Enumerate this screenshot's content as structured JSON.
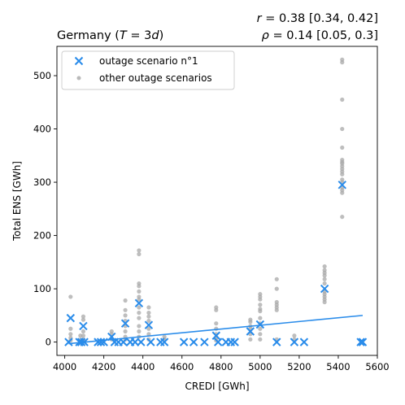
{
  "chart_data": {
    "type": "scatter",
    "title": "Germany (T = 3d)",
    "title_parts": {
      "country": "Germany (",
      "T": "T",
      "eq": " = 3",
      "d": "d",
      "close": ")"
    },
    "stats": {
      "r_line": {
        "sym": "r",
        "text": " = 0.38 [0.34, 0.42]"
      },
      "rho_line": {
        "sym": "ρ",
        "text": " = 0.14 [0.05, 0.3]"
      }
    },
    "xlabel": "CREDI [GWh]",
    "ylabel": "Total ENS [GWh]",
    "xlim": [
      3960,
      5600
    ],
    "ylim": [
      -25,
      555
    ],
    "xticks": [
      4000,
      4200,
      4400,
      4600,
      4800,
      5000,
      5200,
      5400,
      5600
    ],
    "yticks": [
      0,
      100,
      200,
      300,
      400,
      500
    ],
    "grid": false,
    "legend": {
      "position": "top-left",
      "entries": [
        "outage scenario n°1",
        "other outage scenarios"
      ]
    },
    "colors": {
      "primary": "#2a8cea",
      "other": "#a8a8a8"
    },
    "series": [
      {
        "name": "outage scenario n°1",
        "marker": "x",
        "points": [
          [
            4020,
            0
          ],
          [
            4030,
            45
          ],
          [
            4075,
            0
          ],
          [
            4085,
            0
          ],
          [
            4095,
            30
          ],
          [
            4100,
            0
          ],
          [
            4170,
            0
          ],
          [
            4185,
            0
          ],
          [
            4200,
            0
          ],
          [
            4240,
            10
          ],
          [
            4255,
            0
          ],
          [
            4275,
            0
          ],
          [
            4300,
            0
          ],
          [
            4310,
            35
          ],
          [
            4335,
            0
          ],
          [
            4360,
            0
          ],
          [
            4380,
            73
          ],
          [
            4390,
            0
          ],
          [
            4430,
            32
          ],
          [
            4440,
            0
          ],
          [
            4490,
            0
          ],
          [
            4510,
            0
          ],
          [
            4610,
            0
          ],
          [
            4660,
            0
          ],
          [
            4715,
            0
          ],
          [
            4775,
            12
          ],
          [
            4785,
            0
          ],
          [
            4825,
            0
          ],
          [
            4850,
            0
          ],
          [
            4870,
            0
          ],
          [
            4950,
            20
          ],
          [
            5000,
            33
          ],
          [
            5085,
            0
          ],
          [
            5175,
            0
          ],
          [
            5225,
            0
          ],
          [
            5330,
            100
          ],
          [
            5420,
            295
          ],
          [
            5515,
            0
          ],
          [
            5525,
            0
          ]
        ]
      },
      {
        "name": "other outage scenarios",
        "marker": "dot",
        "points": [
          [
            4030,
            85
          ],
          [
            4030,
            25
          ],
          [
            4030,
            15
          ],
          [
            4030,
            8
          ],
          [
            4030,
            3
          ],
          [
            4095,
            48
          ],
          [
            4095,
            42
          ],
          [
            4095,
            20
          ],
          [
            4095,
            12
          ],
          [
            4095,
            5
          ],
          [
            4080,
            12
          ],
          [
            4080,
            4
          ],
          [
            4240,
            20
          ],
          [
            4240,
            15
          ],
          [
            4240,
            5
          ],
          [
            4310,
            78
          ],
          [
            4310,
            60
          ],
          [
            4310,
            50
          ],
          [
            4310,
            40
          ],
          [
            4310,
            30
          ],
          [
            4310,
            20
          ],
          [
            4310,
            10
          ],
          [
            4310,
            5
          ],
          [
            4380,
            172
          ],
          [
            4380,
            165
          ],
          [
            4380,
            110
          ],
          [
            4380,
            105
          ],
          [
            4380,
            95
          ],
          [
            4380,
            85
          ],
          [
            4380,
            80
          ],
          [
            4380,
            65
          ],
          [
            4380,
            55
          ],
          [
            4380,
            45
          ],
          [
            4380,
            30
          ],
          [
            4380,
            20
          ],
          [
            4380,
            10
          ],
          [
            4430,
            65
          ],
          [
            4430,
            55
          ],
          [
            4430,
            48
          ],
          [
            4430,
            40
          ],
          [
            4430,
            25
          ],
          [
            4430,
            15
          ],
          [
            4430,
            5
          ],
          [
            4510,
            10
          ],
          [
            4510,
            5
          ],
          [
            4775,
            65
          ],
          [
            4775,
            60
          ],
          [
            4775,
            35
          ],
          [
            4775,
            25
          ],
          [
            4775,
            15
          ],
          [
            4775,
            8
          ],
          [
            4775,
            3
          ],
          [
            4950,
            42
          ],
          [
            4950,
            38
          ],
          [
            4950,
            30
          ],
          [
            4950,
            25
          ],
          [
            4950,
            15
          ],
          [
            4950,
            5
          ],
          [
            5000,
            90
          ],
          [
            5000,
            85
          ],
          [
            5000,
            80
          ],
          [
            5000,
            70
          ],
          [
            5000,
            62
          ],
          [
            5000,
            58
          ],
          [
            5000,
            45
          ],
          [
            5000,
            35
          ],
          [
            5000,
            25
          ],
          [
            5000,
            15
          ],
          [
            5000,
            5
          ],
          [
            5085,
            118
          ],
          [
            5085,
            100
          ],
          [
            5085,
            75
          ],
          [
            5085,
            70
          ],
          [
            5085,
            65
          ],
          [
            5085,
            60
          ],
          [
            5085,
            5
          ],
          [
            5175,
            12
          ],
          [
            5175,
            5
          ],
          [
            5330,
            142
          ],
          [
            5330,
            135
          ],
          [
            5330,
            130
          ],
          [
            5330,
            125
          ],
          [
            5330,
            118
          ],
          [
            5330,
            110
          ],
          [
            5330,
            95
          ],
          [
            5330,
            90
          ],
          [
            5330,
            85
          ],
          [
            5330,
            80
          ],
          [
            5330,
            75
          ],
          [
            5420,
            530
          ],
          [
            5420,
            525
          ],
          [
            5420,
            455
          ],
          [
            5420,
            400
          ],
          [
            5420,
            365
          ],
          [
            5420,
            342
          ],
          [
            5420,
            338
          ],
          [
            5420,
            335
          ],
          [
            5420,
            330
          ],
          [
            5420,
            325
          ],
          [
            5420,
            320
          ],
          [
            5420,
            315
          ],
          [
            5420,
            305
          ],
          [
            5420,
            300
          ],
          [
            5420,
            290
          ],
          [
            5420,
            285
          ],
          [
            5420,
            280
          ],
          [
            5420,
            235
          ]
        ]
      }
    ],
    "regression_line": {
      "x": [
        4020,
        5525
      ],
      "y": [
        -3,
        50
      ]
    }
  }
}
